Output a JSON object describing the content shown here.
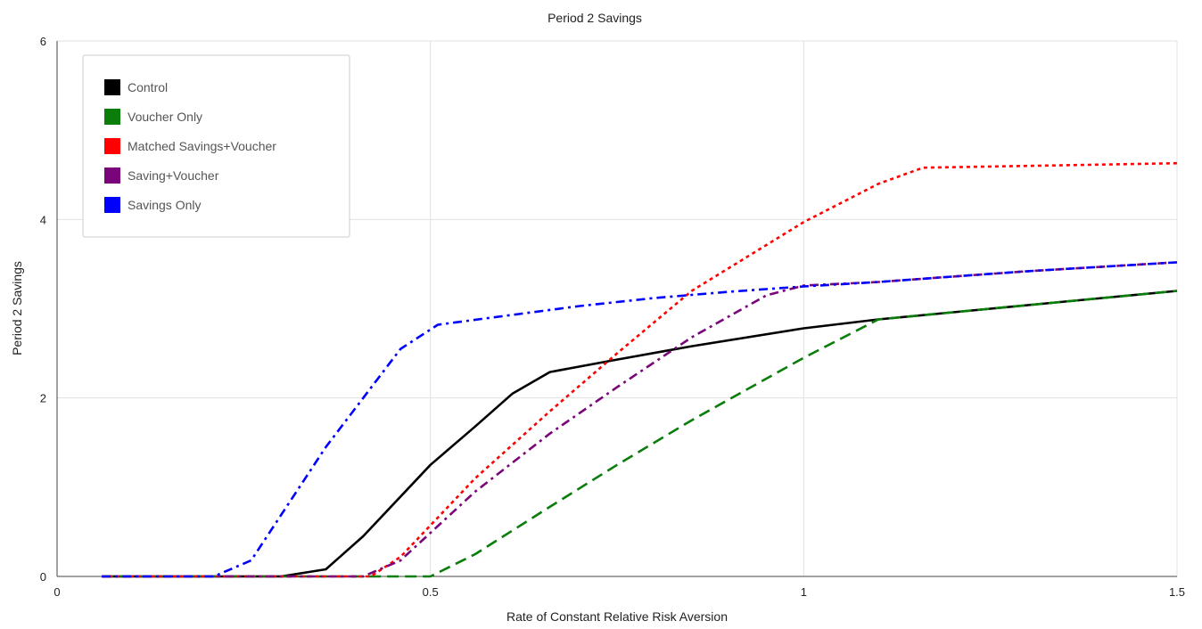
{
  "chart_data": {
    "type": "line",
    "title": "Period 2 Savings",
    "xlabel": "Rate of Constant Relative Risk Aversion",
    "ylabel": "Period 2 Savings",
    "xlim": [
      0,
      1.5
    ],
    "ylim": [
      0,
      6
    ],
    "xticks": [
      0,
      0.5,
      1,
      1.5
    ],
    "xtick_labels": [
      "0",
      "0.5",
      "1",
      "1.5"
    ],
    "yticks": [
      0,
      2,
      4,
      6
    ],
    "ytick_labels": [
      "0",
      "2",
      "4",
      "6"
    ],
    "grid": true,
    "legend_position": "top-left",
    "series": [
      {
        "name": "Control",
        "color": "#000000",
        "dash": "solid",
        "x": [
          0.06,
          0.3,
          0.36,
          0.41,
          0.5,
          0.56,
          0.61,
          0.66,
          0.75,
          0.85,
          1.0,
          1.1,
          1.2,
          1.3,
          1.4,
          1.5
        ],
        "y": [
          0,
          0,
          0.08,
          0.45,
          1.25,
          1.68,
          2.05,
          2.29,
          2.43,
          2.58,
          2.78,
          2.88,
          2.96,
          3.04,
          3.12,
          3.2
        ]
      },
      {
        "name": "Voucher Only",
        "color": "#0a7d0a",
        "dash": "long-dash",
        "x": [
          0.06,
          0.5,
          0.56,
          0.66,
          0.75,
          0.85,
          1.0,
          1.1,
          1.2,
          1.3,
          1.4,
          1.5
        ],
        "y": [
          0,
          0,
          0.25,
          0.78,
          1.25,
          1.75,
          2.45,
          2.88,
          2.96,
          3.04,
          3.12,
          3.2
        ]
      },
      {
        "name": "Matched Savings+Voucher",
        "color": "#ff0000",
        "dash": "dot",
        "x": [
          0.06,
          0.42,
          0.46,
          0.56,
          0.66,
          0.75,
          0.85,
          1.0,
          1.1,
          1.16,
          1.3,
          1.5
        ],
        "y": [
          0,
          0,
          0.22,
          1.1,
          1.85,
          2.5,
          3.2,
          3.97,
          4.4,
          4.58,
          4.6,
          4.63
        ]
      },
      {
        "name": "Saving+Voucher",
        "color": "#7a057a",
        "dash": "dash-dot",
        "x": [
          0.06,
          0.41,
          0.46,
          0.56,
          0.66,
          0.75,
          0.85,
          0.95,
          1.0,
          1.1,
          1.2,
          1.3,
          1.4,
          1.5
        ],
        "y": [
          0,
          0,
          0.18,
          0.95,
          1.6,
          2.12,
          2.68,
          3.15,
          3.26,
          3.3,
          3.36,
          3.42,
          3.47,
          3.52
        ]
      },
      {
        "name": "Savings Only",
        "color": "#0000ff",
        "dash": "dash-dot",
        "x": [
          0.06,
          0.21,
          0.26,
          0.36,
          0.46,
          0.51,
          0.6,
          0.7,
          0.8,
          0.9,
          1.0,
          1.1,
          1.2,
          1.3,
          1.4,
          1.5
        ],
        "y": [
          0,
          0,
          0.18,
          1.45,
          2.55,
          2.82,
          2.92,
          3.03,
          3.12,
          3.19,
          3.25,
          3.3,
          3.36,
          3.42,
          3.47,
          3.52
        ]
      }
    ]
  }
}
